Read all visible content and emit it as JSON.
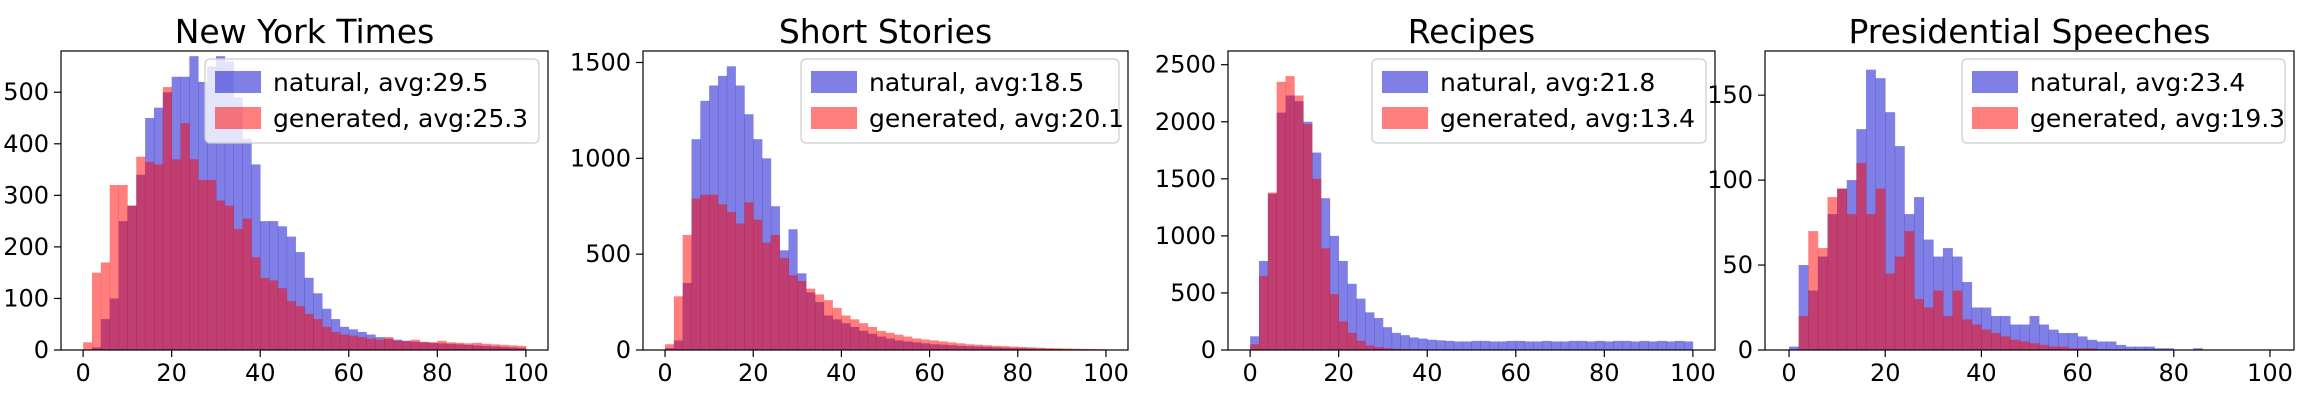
{
  "figure": {
    "series_colors": {
      "natural": "#0000cc",
      "generated": "#ff0000"
    },
    "bar_opacity": {
      "natural": 0.5,
      "generated": 0.5
    },
    "legend_location": "upper right"
  },
  "chart_data": [
    {
      "type": "histogram",
      "title": "New York Times",
      "xlim": [
        -5,
        105
      ],
      "ylim": [
        0,
        580
      ],
      "xticks": [
        0,
        20,
        40,
        60,
        80,
        100
      ],
      "yticks": [
        0,
        100,
        200,
        300,
        400,
        500
      ],
      "bin_start": 0,
      "bin_width": 2,
      "series": [
        {
          "name": "natural, avg:29.5",
          "values": [
            0,
            5,
            60,
            100,
            250,
            280,
            340,
            450,
            470,
            500,
            530,
            530,
            570,
            520,
            550,
            570,
            560,
            490,
            410,
            360,
            250,
            250,
            240,
            220,
            190,
            140,
            110,
            80,
            60,
            45,
            40,
            35,
            30,
            25,
            22,
            20,
            18,
            16,
            15,
            14,
            13,
            12,
            11,
            10,
            9,
            8,
            7,
            6,
            5,
            4
          ]
        },
        {
          "name": "generated, avg:25.3",
          "values": [
            15,
            150,
            170,
            320,
            320,
            280,
            375,
            365,
            360,
            510,
            370,
            440,
            370,
            330,
            330,
            290,
            280,
            235,
            255,
            180,
            140,
            135,
            120,
            95,
            85,
            70,
            60,
            45,
            35,
            30,
            28,
            25,
            22,
            20,
            25,
            18,
            17,
            20,
            16,
            15,
            18,
            15,
            14,
            13,
            14,
            12,
            11,
            10,
            9,
            8
          ]
        }
      ]
    },
    {
      "type": "histogram",
      "title": "Short Stories",
      "xlim": [
        -5,
        105
      ],
      "ylim": [
        0,
        1560
      ],
      "xticks": [
        0,
        20,
        40,
        60,
        80,
        100
      ],
      "yticks": [
        0,
        500,
        1000,
        1500
      ],
      "bin_start": 0,
      "bin_width": 2,
      "series": [
        {
          "name": "natural, avg:18.5",
          "values": [
            10,
            50,
            350,
            1100,
            1300,
            1380,
            1430,
            1480,
            1380,
            1230,
            1100,
            1000,
            750,
            520,
            630,
            400,
            300,
            250,
            180,
            160,
            140,
            120,
            100,
            85,
            70,
            60,
            50,
            45,
            40,
            35,
            30,
            28,
            25,
            22,
            20,
            18,
            16,
            14,
            12,
            10,
            9,
            8,
            7,
            6,
            5,
            4,
            3,
            3,
            2,
            2
          ]
        },
        {
          "name": "generated, avg:20.1",
          "values": [
            30,
            280,
            600,
            790,
            810,
            810,
            760,
            720,
            660,
            770,
            680,
            560,
            600,
            480,
            390,
            360,
            320,
            290,
            260,
            220,
            180,
            160,
            140,
            120,
            100,
            90,
            80,
            70,
            60,
            55,
            50,
            45,
            40,
            35,
            30,
            28,
            25,
            22,
            20,
            18,
            16,
            14,
            12,
            10,
            9,
            8,
            7,
            6,
            5,
            4
          ]
        }
      ]
    },
    {
      "type": "histogram",
      "title": "Recipes",
      "xlim": [
        -5,
        105
      ],
      "ylim": [
        0,
        2620
      ],
      "xticks": [
        0,
        20,
        40,
        60,
        80,
        100
      ],
      "yticks": [
        0,
        500,
        1000,
        1500,
        2000,
        2500
      ],
      "bin_start": 0,
      "bin_width": 2,
      "series": [
        {
          "name": "natural, avg:21.8",
          "values": [
            120,
            780,
            1370,
            2080,
            2230,
            2180,
            2000,
            1730,
            1330,
            1000,
            780,
            580,
            450,
            330,
            280,
            200,
            150,
            130,
            110,
            100,
            90,
            85,
            80,
            75,
            75,
            80,
            80,
            75,
            75,
            80,
            80,
            75,
            75,
            80,
            75,
            75,
            80,
            80,
            75,
            80,
            75,
            80,
            80,
            75,
            80,
            75,
            80,
            75,
            80,
            75
          ]
        },
        {
          "name": "generated, avg:13.4",
          "values": [
            50,
            650,
            1380,
            2350,
            2400,
            2230,
            1980,
            1500,
            890,
            490,
            250,
            150,
            80,
            40,
            25,
            15,
            10,
            8,
            6,
            5,
            4,
            3,
            3,
            2,
            2,
            2,
            1,
            1,
            1,
            1,
            0,
            0,
            0,
            0,
            0,
            0,
            0,
            0,
            0,
            0,
            0,
            0,
            0,
            0,
            0,
            0,
            0,
            0,
            0,
            0
          ]
        }
      ]
    },
    {
      "type": "histogram",
      "title": "Presidential Speeches",
      "xlim": [
        -5,
        105
      ],
      "ylim": [
        0,
        176
      ],
      "xticks": [
        0,
        20,
        40,
        60,
        80,
        100
      ],
      "yticks": [
        0,
        50,
        100,
        150
      ],
      "bin_start": 0,
      "bin_width": 2,
      "series": [
        {
          "name": "natural, avg:23.4",
          "values": [
            2,
            50,
            35,
            55,
            80,
            95,
            100,
            130,
            165,
            160,
            140,
            120,
            80,
            90,
            65,
            55,
            60,
            55,
            40,
            25,
            25,
            20,
            20,
            15,
            15,
            20,
            15,
            12,
            10,
            10,
            8,
            6,
            5,
            5,
            3,
            2,
            2,
            2,
            1,
            1,
            0,
            0,
            1,
            0,
            0,
            0,
            0,
            0,
            0,
            0
          ]
        },
        {
          "name": "generated, avg:19.3",
          "values": [
            0,
            20,
            70,
            60,
            90,
            95,
            80,
            110,
            80,
            95,
            45,
            55,
            70,
            30,
            25,
            35,
            20,
            35,
            18,
            15,
            12,
            10,
            8,
            6,
            5,
            4,
            3,
            2,
            2,
            1,
            1,
            1,
            0,
            0,
            0,
            0,
            0,
            0,
            0,
            0,
            0,
            0,
            0,
            0,
            0,
            0,
            0,
            0,
            0,
            0
          ]
        }
      ]
    }
  ]
}
